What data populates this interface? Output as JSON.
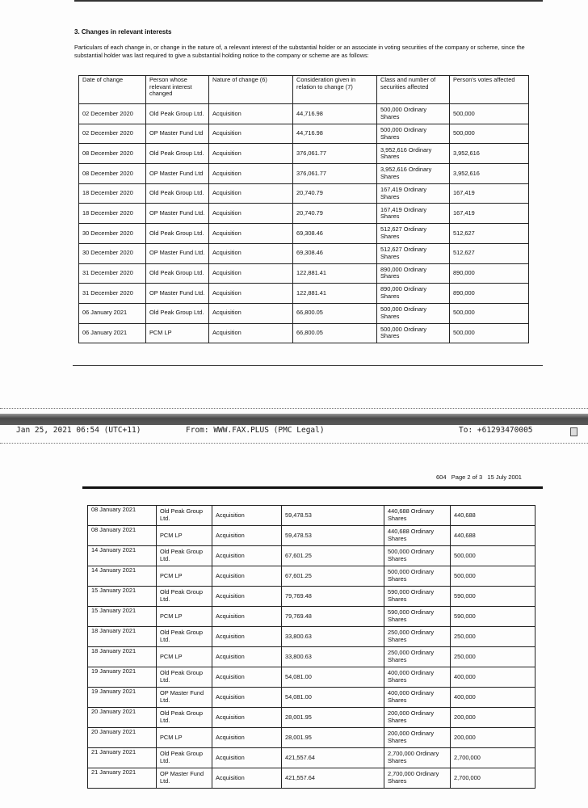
{
  "section_title": "3. Changes in relevant interests",
  "intro": "Particulars of each change in, or change in the nature of, a relevant interest of the substantial holder or an associate in voting securities of the company or scheme, since the substantial holder was last required to give a substantial holding notice to the company or scheme are as follows:",
  "columns": [
    "Date of change",
    "Person whose relevant interest changed",
    "Nature of change (6)",
    "Consideration given in relation to change (7)",
    "Class and number of securities affected",
    "Person's votes affected"
  ],
  "table_page1": [
    [
      "02 December 2020",
      "Old Peak Group Ltd.",
      "Acquisition",
      "44,716.98",
      "500,000 Ordinary Shares",
      "500,000"
    ],
    [
      "02 December 2020",
      "OP Master Fund Ltd",
      "Acquisition",
      "44,716.98",
      "500,000 Ordinary Shares",
      "500,000"
    ],
    [
      "08 December 2020",
      "Old Peak Group Ltd.",
      "Acquisition",
      "376,061.77",
      "3,952,616 Ordinary Shares",
      "3,952,616"
    ],
    [
      "08 December 2020",
      "OP Master Fund Ltd",
      "Acquisition",
      "376,061.77",
      "3,952,616 Ordinary Shares",
      "3,952,616"
    ],
    [
      "18 December 2020",
      "Old Peak Group Ltd.",
      "Acquisition",
      "20,740.79",
      "167,419 Ordinary Shares",
      "167,419"
    ],
    [
      "18 December 2020",
      "OP Master Fund Ltd.",
      "Acquisition",
      "20,740.79",
      "167,419 Ordinary Shares",
      "167,419"
    ],
    [
      "30 December 2020",
      "Old Peak Group Ltd.",
      "Acquisition",
      "69,308.46",
      "512,627 Ordinary Shares",
      "512,627"
    ],
    [
      "30 December 2020",
      "OP Master Fund Ltd.",
      "Acquisition",
      "69,308.46",
      "512,627 Ordinary Shares",
      "512,627"
    ],
    [
      "31 December 2020",
      "Old Peak Group Ltd.",
      "Acquisition",
      "122,881.41",
      "890,000 Ordinary Shares",
      "890,000"
    ],
    [
      "31 December 2020",
      "OP Master Fund Ltd.",
      "Acquisition",
      "122,881.41",
      "890,000 Ordinary Shares",
      "890,000"
    ],
    [
      "06 January 2021",
      "Old Peak Group Ltd.",
      "Acquisition",
      "66,800.05",
      "500,000 Ordinary Shares",
      "500,000"
    ],
    [
      "06 January 2021",
      "PCM LP",
      "Acquisition",
      "66,800.05",
      "500,000 Ordinary Shares",
      "500,000"
    ]
  ],
  "fax_header": {
    "datetime": "Jan 25, 2021 06:54 (UTC+11)",
    "from": "From: WWW.FAX.PLUS (PMC Legal)",
    "to": "To: +61293470005",
    "page_icon": "document-icon"
  },
  "page_footer": {
    "form_no": "604",
    "page": "Page 2 of 3",
    "date": "15 July 2001"
  },
  "table_page2": [
    [
      "08 January 2021",
      "Old Peak Group Ltd.",
      "Acquisition",
      "59,478.53",
      "440,688 Ordinary Shares",
      "440,688"
    ],
    [
      "08 January 2021",
      "PCM LP",
      "Acquisition",
      "59,478.53",
      "440,688 Ordinary Shares",
      "440,688"
    ],
    [
      "14 January 2021",
      "Old Peak Group Ltd.",
      "Acquisition",
      "67,601.25",
      "500,000 Ordinary Shares",
      "500,000"
    ],
    [
      "14 January 2021",
      "PCM LP",
      "Acquisition",
      "67,601.25",
      "500,000 Ordinary Shares",
      "500,000"
    ],
    [
      "15 January 2021",
      "Old Peak Group Ltd.",
      "Acquisition",
      "79,769.48",
      "590,000 Ordinary Shares",
      "590,000"
    ],
    [
      "15 January 2021",
      "PCM LP",
      "Acquisition",
      "79,769.48",
      "590,000 Ordinary Shares",
      "590,000"
    ],
    [
      "18 January 2021",
      "Old Peak Group Ltd.",
      "Acquisition",
      "33,800.63",
      "250,000 Ordinary Shares",
      "250,000"
    ],
    [
      "18 January 2021",
      "PCM LP",
      "Acquisition",
      "33,800.63",
      "250,000 Ordinary Shares",
      "250,000"
    ],
    [
      "19 January 2021",
      "Old Peak Group Ltd.",
      "Acquisition",
      "54,081.00",
      "400,000 Ordinary Shares",
      "400,000"
    ],
    [
      "19 January 2021",
      "OP Master Fund Ltd.",
      "Acquisition",
      "54,081.00",
      "400,000 Ordinary Shares",
      "400,000"
    ],
    [
      "20 January 2021",
      "Old Peak Group Ltd.",
      "Acquisition",
      "28,001.95",
      "200,000 Ordinary Shares",
      "200,000"
    ],
    [
      "20 January 2021",
      "PCM LP",
      "Acquisition",
      "28,001.95",
      "200,000 Ordinary Shares",
      "200,000"
    ],
    [
      "21 January 2021",
      "Old Peak Group Ltd.",
      "Acquisition",
      "421,557.64",
      "2,700,000 Ordinary Shares",
      "2,700,000"
    ],
    [
      "21 January 2021",
      "OP Master Fund Ltd.",
      "Acquisition",
      "421,557.64",
      "2,700,000 Ordinary Shares",
      "2,700,000"
    ]
  ]
}
